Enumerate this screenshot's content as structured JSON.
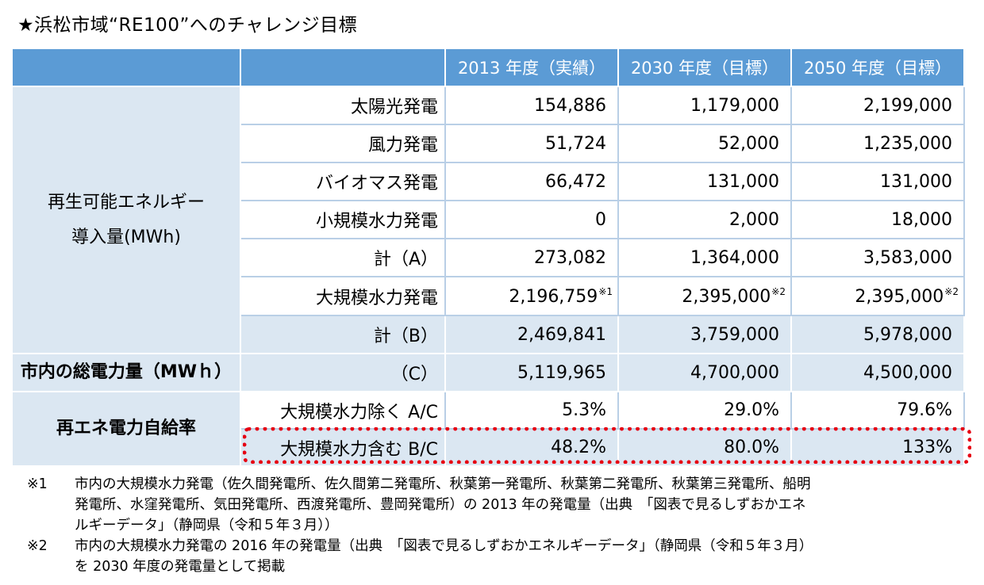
{
  "title": "★浜松市域“RE100”へのチャレンジ目標",
  "table": {
    "columns": [
      "2013 年度（実績）",
      "2030 年度（目標）",
      "2050 年度（目標）"
    ],
    "renewable": {
      "group_label_line1": "再生可能エネルギー",
      "group_label_line2": "導入量(MWh)",
      "rows": [
        {
          "label": "太陽光発電",
          "values": [
            "154,886",
            "1,179,000",
            "2,199,000"
          ]
        },
        {
          "label": "風力発電",
          "values": [
            "51,724",
            "52,000",
            "1,235,000"
          ]
        },
        {
          "label": "バイオマス発電",
          "values": [
            "66,472",
            "131,000",
            "131,000"
          ]
        },
        {
          "label": "小規模水力発電",
          "values": [
            "0",
            "2,000",
            "18,000"
          ]
        },
        {
          "label": "計（A）",
          "values": [
            "273,082",
            "1,364,000",
            "3,583,000"
          ]
        },
        {
          "label": "大規模水力発電",
          "values": [
            "2,196,759",
            "2,395,000",
            "2,395,000"
          ],
          "notes": [
            "※1",
            "※2",
            "※2"
          ]
        },
        {
          "label": "計（B）",
          "values": [
            "2,469,841",
            "3,759,000",
            "5,978,000"
          ]
        }
      ]
    },
    "total": {
      "group_label": "市内の総電力量（MWｈ）",
      "label": "（C）",
      "values": [
        "5,119,965",
        "4,700,000",
        "4,500,000"
      ]
    },
    "self_sufficiency": {
      "group_label": "再エネ電力自給率",
      "rows": [
        {
          "label": "大規模水力除く A/C",
          "values": [
            "5.3%",
            "29.0%",
            "79.6%"
          ]
        },
        {
          "label": "大規模水力含む B/C",
          "values": [
            "48.2%",
            "80.0%",
            "133%"
          ]
        }
      ]
    }
  },
  "notes": [
    {
      "mark": "※1",
      "lines": [
        "市内の大規模水力発電（佐久間発電所、佐久間第二発電所、秋葉第一発電所、秋葉第二発電所、秋葉第三発電所、船明",
        "発電所、水窪発電所、気田発電所、西渡発電所、豊岡発電所）の 2013 年の発電量（出典　「図表で見るしずおかエネ",
        "ルギーデータ」（静岡県（令和５年３月））"
      ]
    },
    {
      "mark": "※2",
      "lines": [
        "市内の大規模水力発電の 2016 年の発電量（出典　「図表で見るしずおかエネルギーデータ」（静岡県（令和５年３月）",
        "を 2030 年度の発電量として掲載"
      ]
    }
  ],
  "colors": {
    "header": "#5b9bd5",
    "light_blue": "#dbe7f2",
    "highlight": "#e60012"
  }
}
